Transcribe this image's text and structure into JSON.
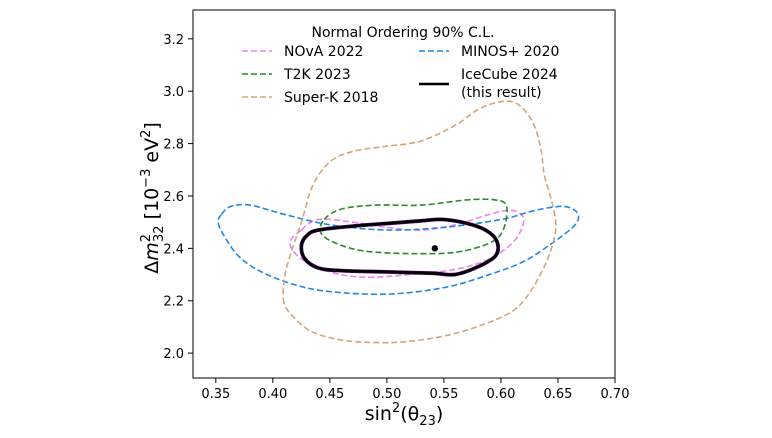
{
  "chart_data": {
    "type": "line",
    "legend": {
      "title": "Normal Ordering 90% C.L.",
      "placement": "top"
    },
    "xlabel": {
      "main": "sin",
      "sup": "2",
      "paren": "(θ",
      "sub": "23",
      "close": ")"
    },
    "ylabel": {
      "delta": "Δ",
      "m": "m",
      "sup": "2",
      "sub": "32",
      "unit_open": " [10",
      "unit_exp": "−3",
      "unit_mid": " eV",
      "unit_sup": "2",
      "unit_close": "]"
    },
    "xlim": [
      0.33,
      0.7
    ],
    "ylim": [
      1.905,
      3.31
    ],
    "xticks": [
      "0.35",
      "0.40",
      "0.45",
      "0.50",
      "0.55",
      "0.60",
      "0.65",
      "0.70"
    ],
    "xtick_values": [
      0.35,
      0.4,
      0.45,
      0.5,
      0.55,
      0.6,
      0.65,
      0.7
    ],
    "yticks": [
      "2.0",
      "2.2",
      "2.4",
      "2.6",
      "2.8",
      "3.0",
      "3.2"
    ],
    "ytick_values": [
      2.0,
      2.2,
      2.4,
      2.6,
      2.8,
      3.0,
      3.2
    ],
    "grid": false,
    "best_fit": {
      "x": 0.542,
      "y": 2.4
    },
    "series": [
      {
        "name": "NOvA 2022",
        "color": "#ee82ee",
        "dash": "dashed",
        "width": 1.6,
        "points": [
          [
            0.425,
            2.47
          ],
          [
            0.44,
            2.51
          ],
          [
            0.47,
            2.5
          ],
          [
            0.5,
            2.48
          ],
          [
            0.53,
            2.47
          ],
          [
            0.56,
            2.49
          ],
          [
            0.59,
            2.53
          ],
          [
            0.61,
            2.545
          ],
          [
            0.62,
            2.51
          ],
          [
            0.612,
            2.43
          ],
          [
            0.59,
            2.36
          ],
          [
            0.56,
            2.32
          ],
          [
            0.52,
            2.3
          ],
          [
            0.48,
            2.29
          ],
          [
            0.45,
            2.31
          ],
          [
            0.425,
            2.36
          ],
          [
            0.415,
            2.42
          ],
          [
            0.425,
            2.47
          ]
        ]
      },
      {
        "name": "MINOS+ 2020",
        "color": "#1f88e5",
        "dash": "dashed",
        "width": 1.6,
        "points": [
          [
            0.355,
            2.53
          ],
          [
            0.363,
            2.56
          ],
          [
            0.38,
            2.565
          ],
          [
            0.41,
            2.53
          ],
          [
            0.45,
            2.49
          ],
          [
            0.5,
            2.47
          ],
          [
            0.55,
            2.48
          ],
          [
            0.6,
            2.51
          ],
          [
            0.63,
            2.545
          ],
          [
            0.655,
            2.56
          ],
          [
            0.667,
            2.535
          ],
          [
            0.665,
            2.49
          ],
          [
            0.645,
            2.42
          ],
          [
            0.62,
            2.35
          ],
          [
            0.59,
            2.3
          ],
          [
            0.55,
            2.25
          ],
          [
            0.5,
            2.225
          ],
          [
            0.45,
            2.235
          ],
          [
            0.42,
            2.26
          ],
          [
            0.39,
            2.31
          ],
          [
            0.37,
            2.37
          ],
          [
            0.357,
            2.45
          ],
          [
            0.352,
            2.5
          ],
          [
            0.355,
            2.53
          ]
        ]
      },
      {
        "name": "T2K 2023",
        "color": "#2a8a2a",
        "dash": "dashed",
        "width": 1.6,
        "points": [
          [
            0.445,
            2.51
          ],
          [
            0.46,
            2.55
          ],
          [
            0.49,
            2.565
          ],
          [
            0.53,
            2.565
          ],
          [
            0.57,
            2.585
          ],
          [
            0.595,
            2.585
          ],
          [
            0.605,
            2.56
          ],
          [
            0.602,
            2.47
          ],
          [
            0.59,
            2.42
          ],
          [
            0.56,
            2.385
          ],
          [
            0.52,
            2.38
          ],
          [
            0.48,
            2.39
          ],
          [
            0.455,
            2.42
          ],
          [
            0.442,
            2.46
          ],
          [
            0.445,
            2.51
          ]
        ]
      },
      {
        "name": "IceCube 2024 (this result)",
        "label_lines": [
          "IceCube 2024",
          "(this result)"
        ],
        "color": "#000000",
        "fill": "#3d0a55",
        "dash": "solid",
        "width": 2.4,
        "points": [
          [
            0.425,
            2.41
          ],
          [
            0.43,
            2.45
          ],
          [
            0.44,
            2.47
          ],
          [
            0.47,
            2.485
          ],
          [
            0.5,
            2.495
          ],
          [
            0.53,
            2.505
          ],
          [
            0.55,
            2.51
          ],
          [
            0.575,
            2.49
          ],
          [
            0.59,
            2.46
          ],
          [
            0.597,
            2.42
          ],
          [
            0.595,
            2.37
          ],
          [
            0.58,
            2.33
          ],
          [
            0.56,
            2.3
          ],
          [
            0.54,
            2.305
          ],
          [
            0.5,
            2.31
          ],
          [
            0.46,
            2.315
          ],
          [
            0.44,
            2.325
          ],
          [
            0.428,
            2.36
          ],
          [
            0.425,
            2.41
          ]
        ]
      },
      {
        "name": "Super-K 2018",
        "color": "#d2a679",
        "dash": "dashed",
        "width": 1.6,
        "points": [
          [
            0.41,
            2.19
          ],
          [
            0.41,
            2.28
          ],
          [
            0.415,
            2.37
          ],
          [
            0.425,
            2.5
          ],
          [
            0.435,
            2.64
          ],
          [
            0.45,
            2.73
          ],
          [
            0.47,
            2.77
          ],
          [
            0.5,
            2.79
          ],
          [
            0.53,
            2.81
          ],
          [
            0.56,
            2.87
          ],
          [
            0.58,
            2.93
          ],
          [
            0.6,
            2.96
          ],
          [
            0.615,
            2.95
          ],
          [
            0.628,
            2.88
          ],
          [
            0.635,
            2.78
          ],
          [
            0.638,
            2.68
          ],
          [
            0.645,
            2.57
          ],
          [
            0.648,
            2.47
          ],
          [
            0.64,
            2.35
          ],
          [
            0.625,
            2.23
          ],
          [
            0.61,
            2.16
          ],
          [
            0.585,
            2.11
          ],
          [
            0.555,
            2.07
          ],
          [
            0.52,
            2.045
          ],
          [
            0.49,
            2.04
          ],
          [
            0.46,
            2.05
          ],
          [
            0.435,
            2.08
          ],
          [
            0.42,
            2.13
          ],
          [
            0.41,
            2.19
          ]
        ]
      }
    ]
  }
}
